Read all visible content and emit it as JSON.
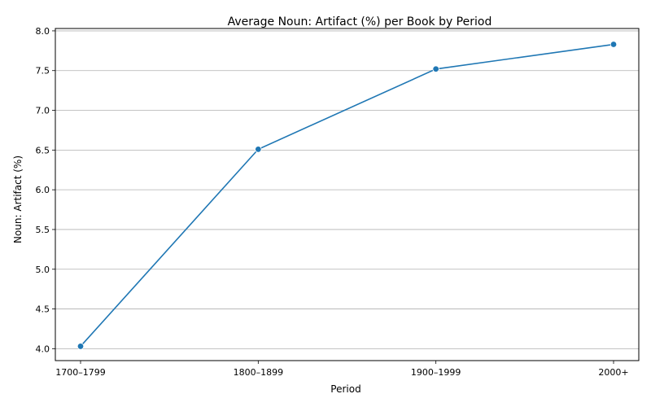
{
  "chart_data": {
    "type": "line",
    "title": "Average Noun: Artifact (%) per Book by Period",
    "xlabel": "Period",
    "ylabel": "Noun: Artifact (%)",
    "categories": [
      "1700–1799",
      "1800–1899",
      "1900–1999",
      "2000+"
    ],
    "values": [
      4.03,
      6.51,
      7.52,
      7.83
    ],
    "yticks": [
      "4.0",
      "4.5",
      "5.0",
      "5.5",
      "6.0",
      "6.5",
      "7.0",
      "7.5",
      "8.0"
    ],
    "ylim": [
      3.85,
      8.03
    ],
    "grid": "horizontal",
    "line_color": "#1f77b4",
    "marker": "circle"
  }
}
